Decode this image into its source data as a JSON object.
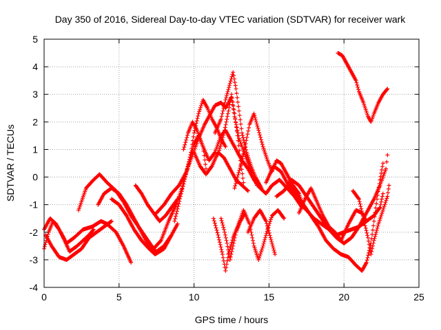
{
  "chart_data": {
    "type": "scatter",
    "title": "Day 350 of 2016, Sidereal Day-to-day VTEC variation (SDTVAR) for receiver wark",
    "xlabel": "GPS time / hours",
    "ylabel": "SDTVAR / TECUs",
    "xlim": [
      0,
      25
    ],
    "ylim": [
      -4,
      5
    ],
    "xticks": [
      "0",
      "5",
      "10",
      "15",
      "20",
      "25"
    ],
    "yticks": [
      "-4",
      "-3",
      "-2",
      "-1",
      "0",
      "1",
      "2",
      "3",
      "4",
      "5"
    ],
    "grid": true,
    "marker": "+",
    "color": "#ff0000",
    "series": [
      {
        "points": [
          [
            0.0,
            -2.6
          ],
          [
            0.3,
            -2.0
          ],
          [
            0.6,
            -1.6
          ],
          [
            1.0,
            -1.9
          ],
          [
            1.5,
            -2.4
          ],
          [
            2.0,
            -2.2
          ],
          [
            2.6,
            -1.9
          ],
          [
            3.2,
            -1.8
          ],
          [
            3.8,
            -1.6
          ],
          [
            4.2,
            -1.7
          ],
          [
            4.8,
            -2.0
          ],
          [
            5.3,
            -2.5
          ],
          [
            5.8,
            -3.1
          ]
        ]
      },
      {
        "points": [
          [
            0.0,
            -1.9
          ],
          [
            0.4,
            -1.5
          ],
          [
            0.8,
            -1.7
          ],
          [
            1.2,
            -2.1
          ],
          [
            1.7,
            -2.7
          ],
          [
            2.2,
            -2.5
          ],
          [
            2.6,
            -2.3
          ],
          [
            3.0,
            -2.1
          ],
          [
            3.3,
            -1.9
          ]
        ]
      },
      {
        "points": [
          [
            0.1,
            -2.1
          ],
          [
            0.5,
            -2.5
          ],
          [
            1.0,
            -2.9
          ],
          [
            1.5,
            -3.0
          ],
          [
            2.0,
            -2.8
          ],
          [
            2.5,
            -2.6
          ],
          [
            3.0,
            -2.2
          ],
          [
            3.5,
            -2.0
          ],
          [
            4.0,
            -1.8
          ],
          [
            4.5,
            -1.6
          ]
        ]
      },
      {
        "points": [
          [
            2.3,
            -1.2
          ],
          [
            2.8,
            -0.4
          ],
          [
            3.3,
            -0.1
          ],
          [
            3.7,
            0.1
          ],
          [
            4.2,
            -0.2
          ],
          [
            4.8,
            -0.5
          ],
          [
            5.3,
            -0.9
          ],
          [
            5.8,
            -1.4
          ],
          [
            6.3,
            -1.8
          ],
          [
            6.8,
            -2.2
          ],
          [
            7.3,
            -2.6
          ],
          [
            7.8,
            -2.3
          ],
          [
            8.3,
            -1.6
          ],
          [
            8.8,
            -1.0
          ],
          [
            9.2,
            -0.4
          ],
          [
            9.6,
            0.4
          ],
          [
            10.0,
            1.2
          ],
          [
            10.3,
            1.5
          ],
          [
            10.6,
            1.1
          ],
          [
            10.8,
            0.3
          ]
        ]
      },
      {
        "points": [
          [
            3.6,
            -1.0
          ],
          [
            4.0,
            -0.6
          ],
          [
            4.5,
            -0.4
          ],
          [
            5.0,
            -0.6
          ],
          [
            5.5,
            -1.0
          ],
          [
            6.0,
            -1.5
          ],
          [
            6.5,
            -2.0
          ],
          [
            7.0,
            -2.5
          ],
          [
            7.5,
            -2.7
          ],
          [
            8.0,
            -2.5
          ],
          [
            8.5,
            -2.1
          ]
        ]
      },
      {
        "points": [
          [
            4.5,
            -0.8
          ],
          [
            5.0,
            -1.0
          ],
          [
            5.5,
            -1.4
          ],
          [
            6.0,
            -1.9
          ],
          [
            6.5,
            -2.3
          ],
          [
            7.0,
            -2.6
          ],
          [
            7.4,
            -2.8
          ],
          [
            8.0,
            -2.6
          ],
          [
            8.5,
            -2.1
          ],
          [
            8.9,
            -1.7
          ]
        ]
      },
      {
        "points": [
          [
            6.1,
            -0.3
          ],
          [
            6.5,
            -0.6
          ],
          [
            6.9,
            -1.0
          ],
          [
            7.3,
            -1.3
          ],
          [
            7.7,
            -1.6
          ],
          [
            8.1,
            -1.4
          ],
          [
            8.5,
            -1.1
          ],
          [
            8.9,
            -0.8
          ]
        ]
      },
      {
        "points": [
          [
            7.5,
            -1.3
          ],
          [
            8.0,
            -1.0
          ],
          [
            8.5,
            -0.6
          ],
          [
            9.0,
            -0.3
          ],
          [
            9.5,
            0.2
          ],
          [
            9.9,
            0.8
          ],
          [
            10.3,
            1.4
          ],
          [
            10.7,
            1.9
          ],
          [
            11.0,
            2.2
          ],
          [
            11.4,
            2.6
          ],
          [
            11.8,
            2.7
          ],
          [
            12.1,
            2.5
          ],
          [
            12.5,
            2.9
          ],
          [
            12.7,
            2.2
          ],
          [
            13.0,
            1.4
          ],
          [
            13.4,
            0.8
          ],
          [
            13.8,
            0.2
          ],
          [
            14.2,
            -0.3
          ]
        ]
      },
      {
        "points": [
          [
            8.7,
            -1.6
          ],
          [
            9.1,
            -0.7
          ],
          [
            9.5,
            0.2
          ],
          [
            9.8,
            0.9
          ],
          [
            10.0,
            1.6
          ],
          [
            10.3,
            2.3
          ],
          [
            10.6,
            2.8
          ],
          [
            10.9,
            2.5
          ],
          [
            11.2,
            2.1
          ],
          [
            11.5,
            1.8
          ],
          [
            11.8,
            1.4
          ],
          [
            12.1,
            1.1
          ]
        ]
      },
      {
        "points": [
          [
            9.3,
            1.0
          ],
          [
            9.6,
            1.6
          ],
          [
            9.9,
            2.0
          ],
          [
            10.2,
            1.7
          ],
          [
            10.6,
            1.1
          ],
          [
            11.0,
            0.6
          ],
          [
            11.4,
            0.9
          ],
          [
            11.8,
            1.5
          ],
          [
            12.1,
            1.7
          ],
          [
            12.4,
            1.4
          ],
          [
            12.8,
            1.0
          ],
          [
            13.2,
            0.6
          ],
          [
            13.6,
            0.3
          ],
          [
            14.0,
            -0.1
          ],
          [
            14.4,
            -0.4
          ],
          [
            14.8,
            -0.6
          ],
          [
            15.2,
            -0.3
          ],
          [
            15.7,
            -0.1
          ],
          [
            16.2,
            -0.4
          ],
          [
            16.7,
            -0.7
          ],
          [
            17.2,
            -1.1
          ]
        ]
      },
      {
        "points": [
          [
            10.0,
            0.9
          ],
          [
            10.4,
            0.4
          ],
          [
            10.8,
            0.1
          ],
          [
            11.2,
            0.4
          ],
          [
            11.6,
            0.9
          ],
          [
            12.0,
            0.7
          ],
          [
            12.4,
            0.3
          ],
          [
            12.8,
            -0.1
          ],
          [
            13.2,
            -0.3
          ],
          [
            13.6,
            -0.5
          ]
        ]
      },
      {
        "points": [
          [
            11.4,
            1.6
          ],
          [
            11.8,
            2.1
          ],
          [
            12.1,
            2.8
          ],
          [
            12.4,
            3.4
          ],
          [
            12.6,
            3.8
          ],
          [
            12.8,
            3.2
          ],
          [
            13.0,
            2.4
          ],
          [
            13.2,
            1.6
          ],
          [
            13.5,
            0.9
          ],
          [
            13.8,
            0.4
          ],
          [
            14.1,
            0.0
          ],
          [
            14.5,
            -0.4
          ]
        ]
      },
      {
        "points": [
          [
            11.6,
            0.8
          ],
          [
            12.0,
            1.6
          ],
          [
            12.3,
            2.4
          ],
          [
            12.5,
            3.0
          ],
          [
            12.7,
            2.3
          ],
          [
            12.9,
            1.5
          ],
          [
            13.1,
            0.6
          ],
          [
            13.3,
            -0.2
          ]
        ]
      },
      {
        "points": [
          [
            12.7,
            -0.4
          ],
          [
            13.1,
            0.4
          ],
          [
            13.4,
            1.1
          ],
          [
            13.7,
            1.9
          ],
          [
            14.0,
            2.3
          ],
          [
            14.3,
            1.7
          ],
          [
            14.6,
            1.1
          ],
          [
            14.9,
            0.6
          ],
          [
            15.2,
            0.2
          ],
          [
            15.5,
            0.6
          ],
          [
            15.8,
            0.5
          ],
          [
            16.2,
            0.1
          ],
          [
            16.6,
            -0.3
          ],
          [
            17.0,
            -0.6
          ],
          [
            17.3,
            -1.1
          ]
        ]
      },
      {
        "points": [
          [
            11.8,
            -1.5
          ],
          [
            12.0,
            -1.9
          ],
          [
            12.2,
            -2.4
          ],
          [
            12.4,
            -3.0
          ],
          [
            12.6,
            -2.5
          ],
          [
            12.8,
            -2.0
          ],
          [
            13.1,
            -1.6
          ],
          [
            13.4,
            -1.3
          ]
        ]
      },
      {
        "points": [
          [
            11.3,
            -1.5
          ],
          [
            11.6,
            -2.1
          ],
          [
            11.9,
            -2.8
          ],
          [
            12.1,
            -3.4
          ],
          [
            12.3,
            -2.8
          ],
          [
            12.6,
            -2.2
          ],
          [
            12.9,
            -1.8
          ],
          [
            13.3,
            -1.2
          ],
          [
            13.7,
            -1.7
          ],
          [
            14.0,
            -2.5
          ],
          [
            14.3,
            -3.0
          ],
          [
            14.6,
            -2.5
          ],
          [
            14.9,
            -1.9
          ],
          [
            15.2,
            -1.4
          ],
          [
            15.6,
            -1.2
          ],
          [
            16.0,
            -1.5
          ]
        ]
      },
      {
        "points": [
          [
            13.6,
            -2.0
          ],
          [
            14.0,
            -1.5
          ],
          [
            14.4,
            -1.2
          ],
          [
            14.8,
            -1.6
          ],
          [
            15.1,
            -2.2
          ],
          [
            15.4,
            -2.8
          ]
        ]
      },
      {
        "points": [
          [
            14.8,
            -0.2
          ],
          [
            15.3,
            0.4
          ],
          [
            15.8,
            0.2
          ],
          [
            16.2,
            -0.2
          ],
          [
            16.6,
            -0.6
          ],
          [
            17.0,
            -0.9
          ],
          [
            17.5,
            -1.2
          ],
          [
            18.0,
            -1.5
          ],
          [
            18.5,
            -1.7
          ],
          [
            19.0,
            -1.9
          ],
          [
            19.5,
            -2.1
          ],
          [
            20.0,
            -2.0
          ],
          [
            20.5,
            -1.9
          ],
          [
            21.0,
            -1.8
          ],
          [
            21.5,
            -1.6
          ],
          [
            22.0,
            -1.4
          ],
          [
            22.4,
            -1.1
          ],
          [
            22.6,
            -0.6
          ]
        ]
      },
      {
        "points": [
          [
            15.5,
            -0.7
          ],
          [
            16.0,
            -0.5
          ],
          [
            16.5,
            -0.1
          ],
          [
            17.0,
            -0.3
          ],
          [
            17.5,
            -0.7
          ],
          [
            18.0,
            -1.1
          ],
          [
            18.5,
            -1.5
          ],
          [
            19.0,
            -1.9
          ],
          [
            19.5,
            -2.2
          ],
          [
            20.0,
            -2.4
          ],
          [
            20.5,
            -2.2
          ],
          [
            21.0,
            -1.8
          ],
          [
            21.5,
            -1.3
          ],
          [
            22.0,
            -0.8
          ],
          [
            22.4,
            -0.3
          ],
          [
            22.8,
            0.3
          ],
          [
            22.9,
            0.8
          ]
        ]
      },
      {
        "points": [
          [
            16.3,
            -0.2
          ],
          [
            16.8,
            -0.6
          ],
          [
            17.3,
            -1.0
          ],
          [
            17.8,
            -1.4
          ],
          [
            18.3,
            -1.8
          ],
          [
            18.8,
            -2.3
          ],
          [
            19.3,
            -2.6
          ],
          [
            19.8,
            -2.8
          ],
          [
            20.3,
            -2.9
          ],
          [
            20.8,
            -3.2
          ],
          [
            21.2,
            -3.4
          ],
          [
            21.5,
            -3.1
          ],
          [
            21.8,
            -2.4
          ],
          [
            22.0,
            -1.6
          ],
          [
            22.2,
            -0.8
          ],
          [
            22.4,
            -0.1
          ],
          [
            22.6,
            0.5
          ]
        ]
      },
      {
        "points": [
          [
            17.0,
            -1.3
          ],
          [
            17.4,
            -0.8
          ],
          [
            17.8,
            -0.4
          ],
          [
            18.2,
            -0.9
          ],
          [
            18.6,
            -1.4
          ],
          [
            19.0,
            -1.8
          ],
          [
            19.4,
            -2.0
          ],
          [
            19.8,
            -2.3
          ],
          [
            20.3,
            -1.7
          ],
          [
            20.8,
            -1.2
          ],
          [
            21.2,
            -1.3
          ],
          [
            21.5,
            -1.6
          ]
        ]
      },
      {
        "points": [
          [
            20.6,
            -0.5
          ],
          [
            21.0,
            -0.8
          ],
          [
            21.3,
            -1.5
          ],
          [
            21.6,
            -2.2
          ],
          [
            21.8,
            -2.8
          ],
          [
            22.0,
            -2.3
          ],
          [
            22.3,
            -1.7
          ],
          [
            22.6,
            -1.2
          ],
          [
            22.9,
            -0.7
          ],
          [
            23.0,
            -0.3
          ]
        ]
      },
      {
        "points": [
          [
            19.6,
            4.5
          ],
          [
            19.9,
            4.4
          ],
          [
            20.2,
            4.1
          ],
          [
            20.5,
            3.8
          ],
          [
            20.8,
            3.5
          ],
          [
            21.0,
            3.1
          ],
          [
            21.3,
            2.7
          ],
          [
            21.6,
            2.2
          ],
          [
            21.8,
            2.0
          ],
          [
            22.0,
            2.3
          ],
          [
            22.3,
            2.7
          ],
          [
            22.6,
            3.0
          ],
          [
            22.9,
            3.2
          ]
        ]
      }
    ]
  }
}
